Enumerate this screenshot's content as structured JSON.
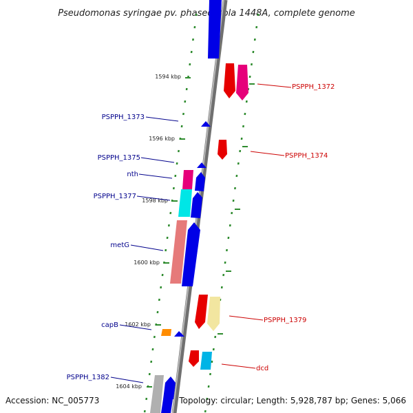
{
  "title": "Pseudomonas syringae pv. phaseolicola 1448A, complete genome",
  "footer": {
    "accession": "Accession: NC_005773",
    "topology": "Topology: circular; Length: 5,928,787 bp; Genes: 5,066"
  },
  "colors": {
    "forward_label": "#cc0000",
    "reverse_label": "#00008b",
    "backbone": "#888888",
    "tick": "#2e8b2e",
    "forward_strand_red": "#e60000",
    "forward_strand_magenta": "#e6007a",
    "forward_strand_cream": "#f2e6a0",
    "forward_strand_cyan": "#00b4e6",
    "reverse_strand_blue": "#0000e6",
    "reverse_strand_magenta": "#e6007a",
    "reverse_strand_cyan": "#00e6e6",
    "reverse_strand_salmon": "#e67a7a",
    "reverse_strand_orange": "#ff8c00",
    "reverse_strand_gray": "#b0b0b0"
  },
  "kbp_labels": [
    "1594 kbp",
    "1596 kbp",
    "1598 kbp",
    "1600 kbp",
    "1602 kbp",
    "1604 kbp"
  ],
  "genes_left": [
    "PSPPH_1373",
    "PSPPH_1375",
    "nth",
    "PSPPH_1377",
    "metG",
    "capB",
    "PSPPH_1382"
  ],
  "genes_right": [
    "PSPPH_1372",
    "PSPPH_1374",
    "PSPPH_1379",
    "dcd"
  ]
}
